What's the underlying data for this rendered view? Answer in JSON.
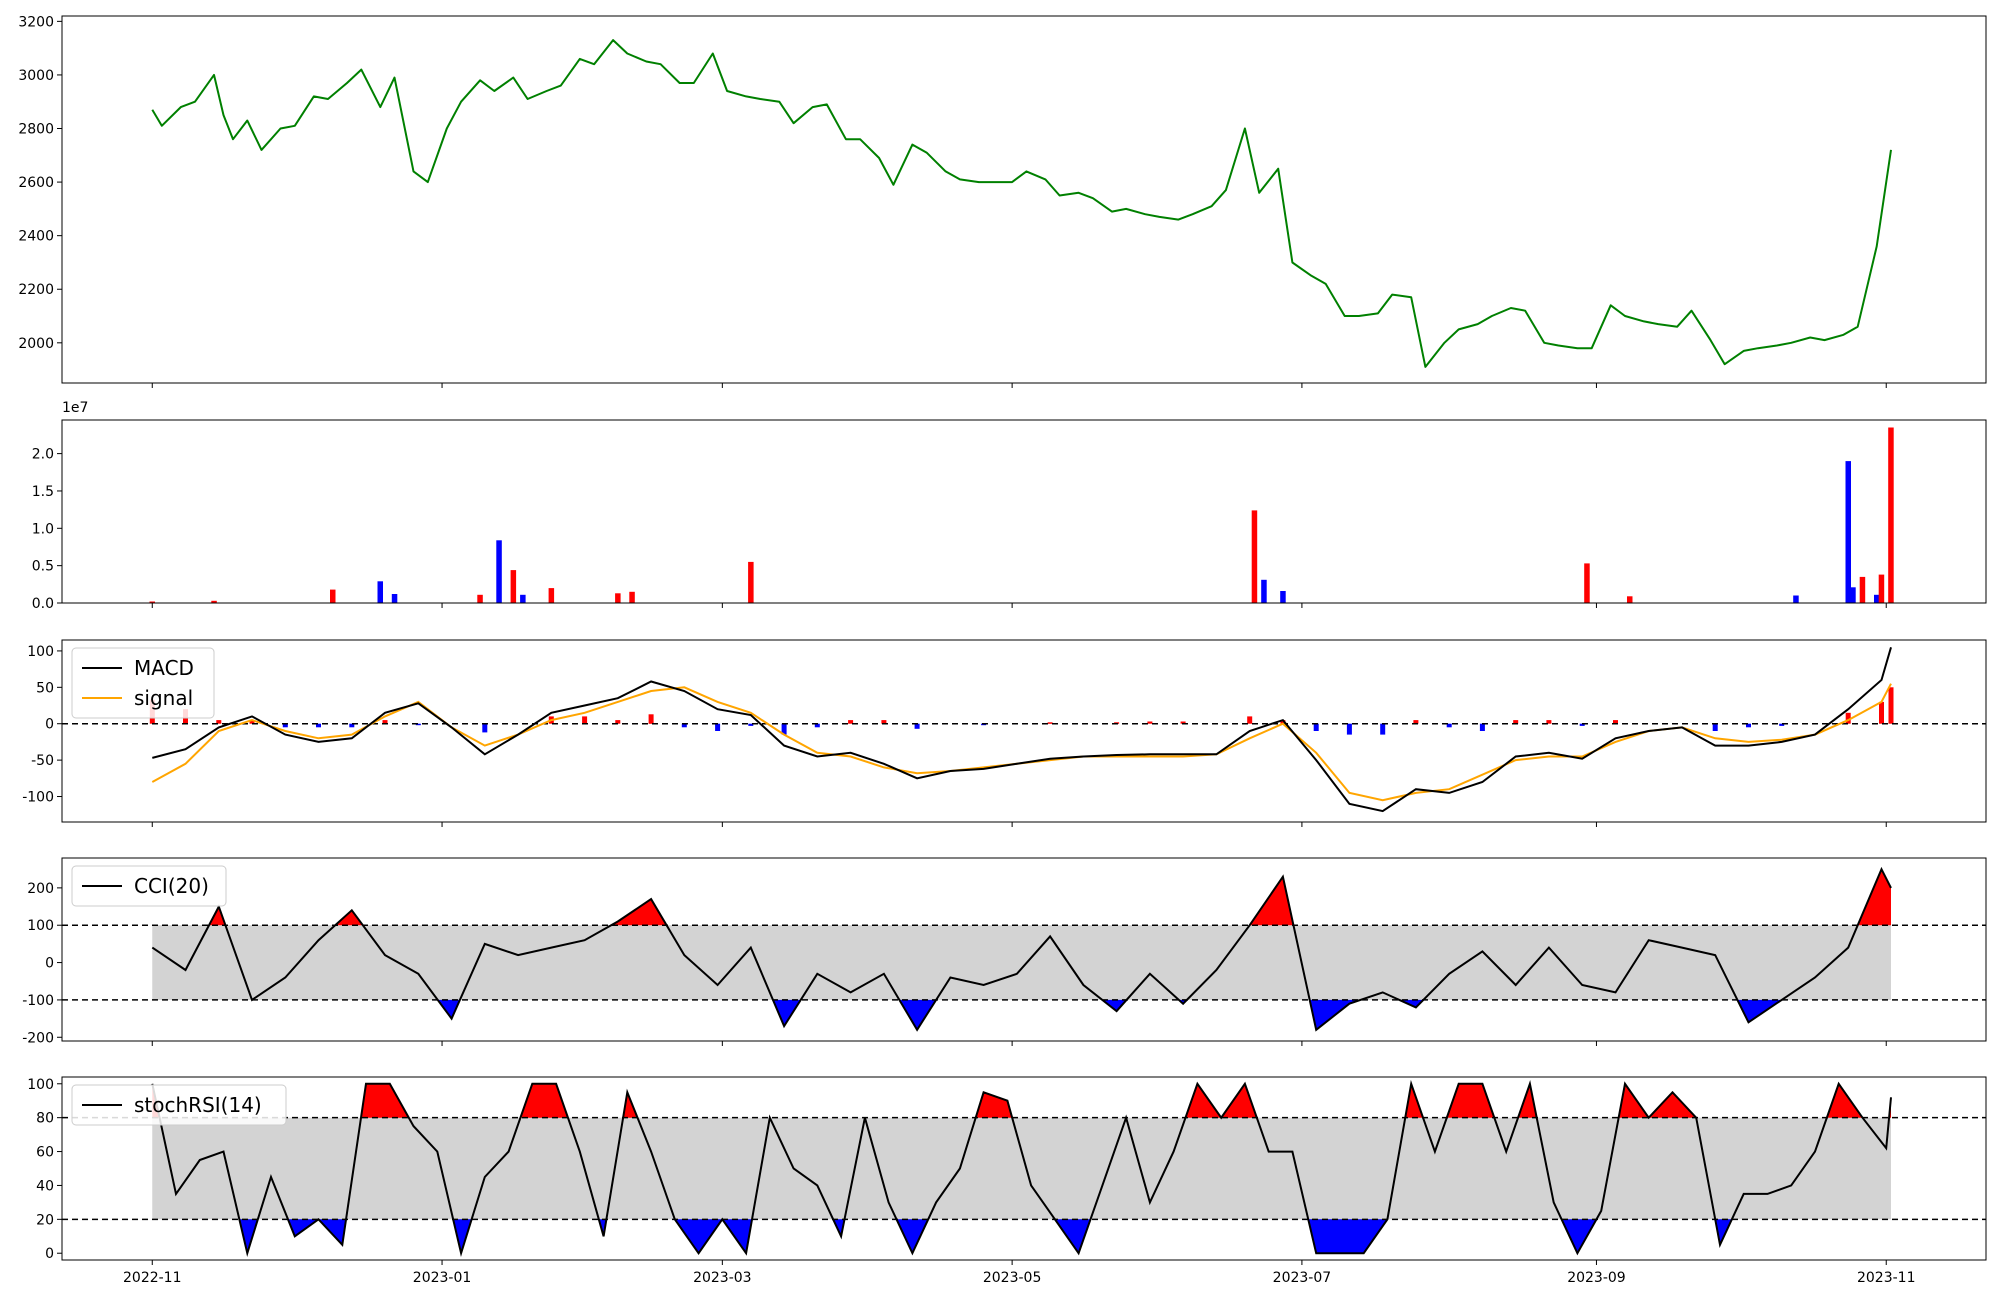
{
  "chart_data": [
    {
      "type": "line",
      "panel": "price",
      "color": "#008000",
      "x_dates": [
        "2022-11-01",
        "2022-11-03",
        "2022-11-07",
        "2022-11-10",
        "2022-11-14",
        "2022-11-16",
        "2022-11-18",
        "2022-11-21",
        "2022-11-24",
        "2022-11-28",
        "2022-12-01",
        "2022-12-05",
        "2022-12-08",
        "2022-12-12",
        "2022-12-15",
        "2022-12-19",
        "2022-12-22",
        "2022-12-26",
        "2022-12-29",
        "2023-01-02",
        "2023-01-05",
        "2023-01-09",
        "2023-01-12",
        "2023-01-16",
        "2023-01-19",
        "2023-01-23",
        "2023-01-26",
        "2023-01-30",
        "2023-02-02",
        "2023-02-06",
        "2023-02-09",
        "2023-02-13",
        "2023-02-16",
        "2023-02-20",
        "2023-02-23",
        "2023-02-27",
        "2023-03-02",
        "2023-03-06",
        "2023-03-09",
        "2023-03-13",
        "2023-03-16",
        "2023-03-20",
        "2023-03-23",
        "2023-03-27",
        "2023-03-30",
        "2023-04-03",
        "2023-04-06",
        "2023-04-10",
        "2023-04-13",
        "2023-04-17",
        "2023-04-20",
        "2023-04-24",
        "2023-04-27",
        "2023-05-01",
        "2023-05-04",
        "2023-05-08",
        "2023-05-11",
        "2023-05-15",
        "2023-05-18",
        "2023-05-22",
        "2023-05-25",
        "2023-05-29",
        "2023-06-01",
        "2023-06-05",
        "2023-06-08",
        "2023-06-12",
        "2023-06-15",
        "2023-06-19",
        "2023-06-22",
        "2023-06-26",
        "2023-06-29",
        "2023-07-03",
        "2023-07-06",
        "2023-07-10",
        "2023-07-13",
        "2023-07-17",
        "2023-07-20",
        "2023-07-24",
        "2023-07-27",
        "2023-07-31",
        "2023-08-03",
        "2023-08-07",
        "2023-08-10",
        "2023-08-14",
        "2023-08-17",
        "2023-08-21",
        "2023-08-24",
        "2023-08-28",
        "2023-08-31",
        "2023-09-04",
        "2023-09-07",
        "2023-09-11",
        "2023-09-14",
        "2023-09-18",
        "2023-09-21",
        "2023-09-25",
        "2023-09-28",
        "2023-10-02",
        "2023-10-05",
        "2023-10-09",
        "2023-10-12",
        "2023-10-16",
        "2023-10-19",
        "2023-10-23",
        "2023-10-26",
        "2023-10-30",
        "2023-11-02"
      ],
      "values": [
        2870,
        2810,
        2880,
        2900,
        3000,
        2850,
        2760,
        2830,
        2720,
        2800,
        2810,
        2920,
        2910,
        2970,
        3020,
        2880,
        2990,
        2640,
        2600,
        2800,
        2900,
        2980,
        2940,
        2990,
        2910,
        2940,
        2960,
        3060,
        3040,
        3130,
        3080,
        3050,
        3040,
        2970,
        2970,
        3080,
        2940,
        2920,
        2910,
        2900,
        2820,
        2880,
        2890,
        2760,
        2760,
        2690,
        2590,
        2740,
        2710,
        2640,
        2610,
        2600,
        2600,
        2600,
        2640,
        2610,
        2550,
        2560,
        2540,
        2490,
        2500,
        2480,
        2470,
        2460,
        2480,
        2510,
        2570,
        2800,
        2560,
        2650,
        2300,
        2250,
        2220,
        2100,
        2100,
        2110,
        2180,
        2170,
        1910,
        2000,
        2050,
        2070,
        2100,
        2130,
        2120,
        2000,
        1990,
        1980,
        1980,
        2140,
        2100,
        2080,
        2070,
        2060,
        2120,
        2010,
        1920,
        1970,
        1980,
        1990,
        2000,
        2020,
        2010,
        2030,
        2060,
        2360,
        2720
      ],
      "ylim": [
        1850,
        3220
      ],
      "yticks": [
        2000,
        2200,
        2400,
        2600,
        2800,
        3000,
        3200
      ]
    },
    {
      "type": "bar",
      "panel": "volume",
      "scale_label": "1e7",
      "up_color": "#ff0000",
      "down_color": "#0000ff",
      "bars": [
        {
          "date": "2022-11-01",
          "value": 200000,
          "color": "red"
        },
        {
          "date": "2022-11-14",
          "value": 300000,
          "color": "red"
        },
        {
          "date": "2022-12-09",
          "value": 1800000,
          "color": "red"
        },
        {
          "date": "2022-12-19",
          "value": 2900000,
          "color": "blue"
        },
        {
          "date": "2022-12-22",
          "value": 1200000,
          "color": "blue"
        },
        {
          "date": "2023-01-09",
          "value": 1100000,
          "color": "red"
        },
        {
          "date": "2023-01-13",
          "value": 8400000,
          "color": "blue"
        },
        {
          "date": "2023-01-16",
          "value": 4400000,
          "color": "red"
        },
        {
          "date": "2023-01-18",
          "value": 1100000,
          "color": "blue"
        },
        {
          "date": "2023-01-24",
          "value": 2000000,
          "color": "red"
        },
        {
          "date": "2023-02-07",
          "value": 1300000,
          "color": "red"
        },
        {
          "date": "2023-02-10",
          "value": 1500000,
          "color": "red"
        },
        {
          "date": "2023-03-07",
          "value": 5500000,
          "color": "red"
        },
        {
          "date": "2023-06-21",
          "value": 12400000,
          "color": "red"
        },
        {
          "date": "2023-06-23",
          "value": 3100000,
          "color": "blue"
        },
        {
          "date": "2023-06-27",
          "value": 1600000,
          "color": "blue"
        },
        {
          "date": "2023-08-30",
          "value": 5300000,
          "color": "red"
        },
        {
          "date": "2023-09-08",
          "value": 900000,
          "color": "red"
        },
        {
          "date": "2023-10-13",
          "value": 1000000,
          "color": "blue"
        },
        {
          "date": "2023-10-24",
          "value": 19000000,
          "color": "blue"
        },
        {
          "date": "2023-10-25",
          "value": 2100000,
          "color": "blue"
        },
        {
          "date": "2023-10-27",
          "value": 3500000,
          "color": "red"
        },
        {
          "date": "2023-10-30",
          "value": 1100000,
          "color": "blue"
        },
        {
          "date": "2023-10-31",
          "value": 3800000,
          "color": "red"
        },
        {
          "date": "2023-11-02",
          "value": 23500000,
          "color": "red"
        }
      ],
      "ylim": [
        0,
        24500000
      ],
      "ytick_labels": [
        "0.0",
        "0.5",
        "1.0",
        "1.5",
        "2.0"
      ],
      "yticks": [
        0,
        5000000,
        10000000,
        15000000,
        20000000
      ]
    },
    {
      "type": "line",
      "panel": "macd",
      "legend": [
        "MACD",
        "signal"
      ],
      "macd_color": "#000000",
      "signal_color": "#ffa500",
      "hist_up_color": "#ff0000",
      "hist_down_color": "#0000ff",
      "x_dates": [
        "2022-11-01",
        "2022-11-08",
        "2022-11-15",
        "2022-11-22",
        "2022-11-29",
        "2022-12-06",
        "2022-12-13",
        "2022-12-20",
        "2022-12-27",
        "2023-01-03",
        "2023-01-10",
        "2023-01-17",
        "2023-01-24",
        "2023-01-31",
        "2023-02-07",
        "2023-02-14",
        "2023-02-21",
        "2023-02-28",
        "2023-03-07",
        "2023-03-14",
        "2023-03-21",
        "2023-03-28",
        "2023-04-04",
        "2023-04-11",
        "2023-04-18",
        "2023-04-25",
        "2023-05-02",
        "2023-05-09",
        "2023-05-16",
        "2023-05-23",
        "2023-05-30",
        "2023-06-06",
        "2023-06-13",
        "2023-06-20",
        "2023-06-27",
        "2023-07-04",
        "2023-07-11",
        "2023-07-18",
        "2023-07-25",
        "2023-08-01",
        "2023-08-08",
        "2023-08-15",
        "2023-08-22",
        "2023-08-29",
        "2023-09-05",
        "2023-09-12",
        "2023-09-19",
        "2023-09-26",
        "2023-10-03",
        "2023-10-10",
        "2023-10-17",
        "2023-10-24",
        "2023-10-31",
        "2023-11-02"
      ],
      "macd": [
        -47,
        -35,
        -5,
        10,
        -15,
        -25,
        -20,
        15,
        28,
        -5,
        -42,
        -15,
        15,
        25,
        35,
        58,
        45,
        20,
        12,
        -30,
        -45,
        -40,
        -55,
        -75,
        -65,
        -62,
        -55,
        -48,
        -45,
        -43,
        -42,
        -42,
        -42,
        -10,
        5,
        -50,
        -110,
        -120,
        -90,
        -95,
        -80,
        -45,
        -40,
        -48,
        -20,
        -10,
        -5,
        -30,
        -30,
        -25,
        -15,
        20,
        60,
        105
      ],
      "signal": [
        -80,
        -55,
        -10,
        5,
        -10,
        -20,
        -15,
        10,
        30,
        -5,
        -30,
        -15,
        5,
        15,
        30,
        45,
        50,
        30,
        15,
        -15,
        -40,
        -45,
        -60,
        -68,
        -65,
        -60,
        -55,
        -50,
        -45,
        -45,
        -45,
        -45,
        -42,
        -20,
        0,
        -40,
        -95,
        -105,
        -95,
        -90,
        -70,
        -50,
        -45,
        -45,
        -25,
        -10,
        -5,
        -20,
        -25,
        -22,
        -15,
        5,
        30,
        55
      ],
      "ylim": [
        -135,
        115
      ],
      "yticks": [
        -100,
        -50,
        0,
        50,
        100
      ],
      "zero_line": 0
    },
    {
      "type": "area",
      "panel": "cci",
      "legend": [
        "CCI(20)"
      ],
      "line_color": "#000000",
      "band": [
        -100,
        100
      ],
      "band_color": "#d3d3d3",
      "overbought_color": "#ff0000",
      "oversold_color": "#0000ff",
      "x_dates": [
        "2022-11-01",
        "2022-11-08",
        "2022-11-15",
        "2022-11-22",
        "2022-11-29",
        "2022-12-06",
        "2022-12-13",
        "2022-12-20",
        "2022-12-27",
        "2023-01-03",
        "2023-01-10",
        "2023-01-17",
        "2023-01-24",
        "2023-01-31",
        "2023-02-07",
        "2023-02-14",
        "2023-02-21",
        "2023-02-28",
        "2023-03-07",
        "2023-03-14",
        "2023-03-21",
        "2023-03-28",
        "2023-04-04",
        "2023-04-11",
        "2023-04-18",
        "2023-04-25",
        "2023-05-02",
        "2023-05-09",
        "2023-05-16",
        "2023-05-23",
        "2023-05-30",
        "2023-06-06",
        "2023-06-13",
        "2023-06-20",
        "2023-06-27",
        "2023-07-04",
        "2023-07-11",
        "2023-07-18",
        "2023-07-25",
        "2023-08-01",
        "2023-08-08",
        "2023-08-15",
        "2023-08-22",
        "2023-08-29",
        "2023-09-05",
        "2023-09-12",
        "2023-09-19",
        "2023-09-26",
        "2023-10-03",
        "2023-10-10",
        "2023-10-17",
        "2023-10-24",
        "2023-10-31",
        "2023-11-02"
      ],
      "values": [
        40,
        -20,
        150,
        -100,
        -40,
        60,
        140,
        20,
        -30,
        -150,
        50,
        20,
        40,
        60,
        110,
        170,
        20,
        -60,
        40,
        -170,
        -30,
        -80,
        -30,
        -180,
        -40,
        -60,
        -30,
        70,
        -60,
        -130,
        -30,
        -110,
        -20,
        100,
        230,
        -180,
        -110,
        -80,
        -120,
        -30,
        30,
        -60,
        40,
        -60,
        -80,
        60,
        40,
        20,
        -160,
        -100,
        -40,
        40,
        250,
        200
      ],
      "ylim": [
        -210,
        280
      ],
      "yticks": [
        -200,
        -100,
        0,
        100,
        200
      ]
    },
    {
      "type": "area",
      "panel": "stochrsi",
      "legend": [
        "stochRSI(14)"
      ],
      "line_color": "#000000",
      "band": [
        20,
        80
      ],
      "band_color": "#d3d3d3",
      "overbought_color": "#ff0000",
      "oversold_color": "#0000ff",
      "x_dates": [
        "2022-11-01",
        "2022-11-06",
        "2022-11-11",
        "2022-11-16",
        "2022-11-21",
        "2022-11-26",
        "2022-12-01",
        "2022-12-06",
        "2022-12-11",
        "2022-12-16",
        "2022-12-21",
        "2022-12-26",
        "2022-12-31",
        "2023-01-05",
        "2023-01-10",
        "2023-01-15",
        "2023-01-20",
        "2023-01-25",
        "2023-01-30",
        "2023-02-04",
        "2023-02-09",
        "2023-02-14",
        "2023-02-19",
        "2023-02-24",
        "2023-03-01",
        "2023-03-06",
        "2023-03-11",
        "2023-03-16",
        "2023-03-21",
        "2023-03-26",
        "2023-03-31",
        "2023-04-05",
        "2023-04-10",
        "2023-04-15",
        "2023-04-20",
        "2023-04-25",
        "2023-04-30",
        "2023-05-05",
        "2023-05-10",
        "2023-05-15",
        "2023-05-20",
        "2023-05-25",
        "2023-05-30",
        "2023-06-04",
        "2023-06-09",
        "2023-06-14",
        "2023-06-19",
        "2023-06-24",
        "2023-06-29",
        "2023-07-04",
        "2023-07-09",
        "2023-07-14",
        "2023-07-19",
        "2023-07-24",
        "2023-07-29",
        "2023-08-03",
        "2023-08-08",
        "2023-08-13",
        "2023-08-18",
        "2023-08-23",
        "2023-08-28",
        "2023-09-02",
        "2023-09-07",
        "2023-09-12",
        "2023-09-17",
        "2023-09-22",
        "2023-09-27",
        "2023-10-02",
        "2023-10-07",
        "2023-10-12",
        "2023-10-17",
        "2023-10-22",
        "2023-10-27",
        "2023-11-01",
        "2023-11-02"
      ],
      "values": [
        100,
        35,
        55,
        60,
        0,
        45,
        10,
        20,
        5,
        100,
        100,
        75,
        60,
        0,
        45,
        60,
        100,
        100,
        60,
        10,
        95,
        60,
        20,
        0,
        20,
        0,
        80,
        50,
        40,
        10,
        80,
        30,
        0,
        30,
        50,
        95,
        90,
        40,
        20,
        0,
        40,
        80,
        30,
        60,
        100,
        80,
        100,
        60,
        60,
        0,
        0,
        0,
        20,
        100,
        60,
        100,
        100,
        60,
        100,
        30,
        0,
        25,
        100,
        80,
        95,
        80,
        5,
        35,
        35,
        40,
        60,
        100,
        80,
        62,
        92
      ],
      "ylim": [
        -4,
        104
      ],
      "yticks": [
        0,
        20,
        40,
        60,
        80,
        100
      ]
    }
  ],
  "x_axis": {
    "tick_labels": [
      "2022-11",
      "2023-01",
      "2023-03",
      "2023-05",
      "2023-07",
      "2023-09",
      "2023-11"
    ],
    "range": [
      "2022-10-13",
      "2023-11-22"
    ]
  }
}
